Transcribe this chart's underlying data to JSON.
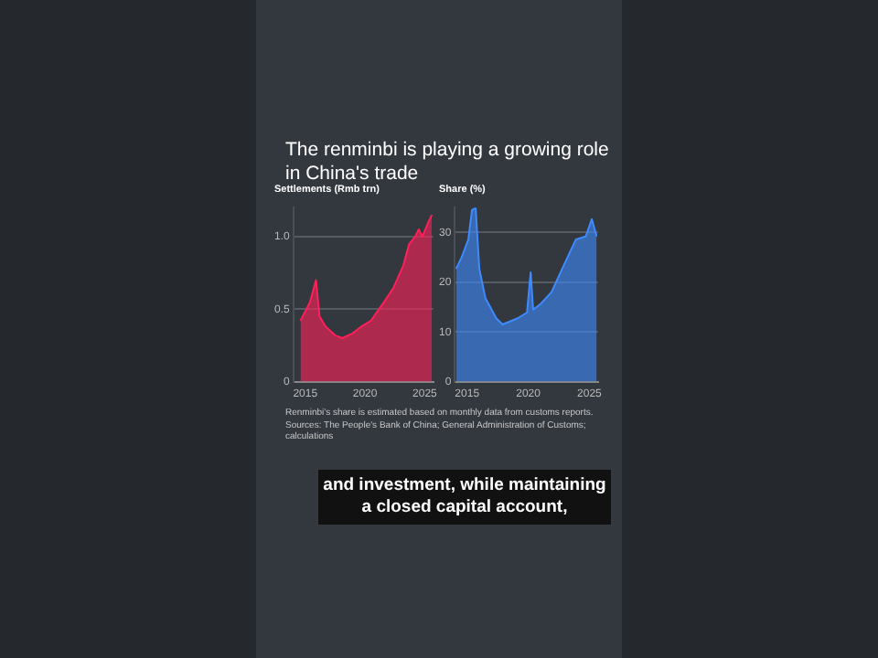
{
  "chart_data": [
    {
      "type": "area",
      "title": "The renminbi is playing a growing role in China's trade",
      "subtitle": "Settlements (Rmb trn)",
      "grid": "y",
      "legend": false,
      "xlim": [
        2014,
        2025.7
      ],
      "xticks": [
        2015,
        2020,
        2025
      ],
      "ylim": [
        0,
        1.2
      ],
      "yticks": [
        0,
        0.5,
        {
          "value": 1,
          "label": "1.0"
        }
      ],
      "series": [
        {
          "color": "#ff1f5a",
          "x": [
            2014.6,
            2015.4,
            2015.9,
            2016.2,
            2016.7,
            2017.5,
            2018.1,
            2018.9,
            2019.7,
            2020.5,
            2021.0,
            2021.6,
            2022.4,
            2023.2,
            2023.7,
            2024.2,
            2024.5,
            2024.8,
            2025.3,
            2025.6
          ],
          "values": [
            0.42,
            0.55,
            0.7,
            0.45,
            0.38,
            0.32,
            0.3,
            0.33,
            0.38,
            0.42,
            0.48,
            0.55,
            0.65,
            0.8,
            0.95,
            1.0,
            1.05,
            1.0,
            1.1,
            1.15
          ]
        }
      ],
      "annotations": [
        "Renminbi's share is estimated based on monthly data from customs reports. Sources: The People's Bank of China; General Administration of Customs; calculations",
        "and investment, while maintaining a closed capital account,"
      ]
    },
    {
      "type": "area",
      "subtitle": "Share (%)",
      "grid": "y",
      "legend": false,
      "xlim": [
        2014,
        2025.7
      ],
      "xticks": [
        2015,
        2020,
        2025
      ],
      "ylim": [
        0,
        35
      ],
      "yticks": [
        0,
        10,
        20,
        30
      ],
      "series": [
        {
          "color": "#3d8bff",
          "x": [
            2014.1,
            2014.55,
            2015.1,
            2015.4,
            2015.7,
            2016.0,
            2016.5,
            2017.4,
            2017.9,
            2019.1,
            2019.9,
            2020.2,
            2020.4,
            2021.0,
            2021.9,
            2023.0,
            2023.9,
            2024.7,
            2025.2,
            2025.6
          ],
          "values": [
            22.7,
            25,
            28.6,
            34.5,
            35,
            22.7,
            16.8,
            12.7,
            11.5,
            12.7,
            13.9,
            22,
            14.5,
            15.6,
            18,
            23.9,
            28.6,
            29.2,
            32.7,
            29.2
          ]
        }
      ]
    }
  ]
}
